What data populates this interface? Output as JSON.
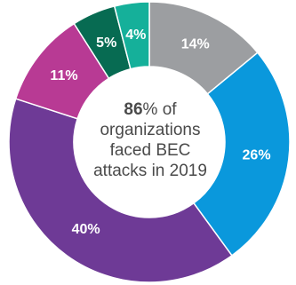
{
  "chart_data": {
    "type": "pie",
    "categories": [
      "14%",
      "26%",
      "40%",
      "11%",
      "5%",
      "4%"
    ],
    "values": [
      14,
      26,
      40,
      11,
      5,
      4
    ],
    "labels": [
      "14%",
      "26%",
      "40%",
      "11%",
      "5%",
      "4%"
    ],
    "colors": [
      "#9c9ea1",
      "#0a98dc",
      "#6e3a96",
      "#b83a94",
      "#076b52",
      "#15b09a"
    ],
    "title": "",
    "center_text": {
      "highlight": "86",
      "line1_rest": "% of",
      "line2": "organizations",
      "line3": "faced BEC",
      "line4": "attacks in 2019"
    }
  }
}
